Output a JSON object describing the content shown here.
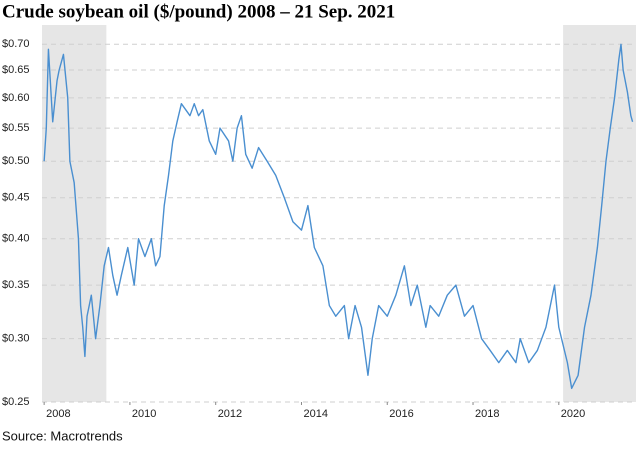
{
  "chart_data": {
    "type": "line",
    "title": "Crude soybean oil ($/pound) 2008 – 21 Sep. 2021",
    "source": "Source: Macrotrends",
    "log_scale": true,
    "grid": true,
    "highlight_ranges": [
      [
        2007.95,
        2009.45
      ],
      [
        2020.1,
        2021.8
      ]
    ],
    "xlim": [
      2007.95,
      2021.8
    ],
    "xticks": [
      2008,
      2010,
      2012,
      2014,
      2016,
      2018,
      2020
    ],
    "ylim": [
      0.25,
      0.74
    ],
    "yticks": [
      {
        "value": 0.25,
        "label": "$0.25"
      },
      {
        "value": 0.3,
        "label": "$0.30"
      },
      {
        "value": 0.35,
        "label": "$0.35"
      },
      {
        "value": 0.4,
        "label": "$0.40"
      },
      {
        "value": 0.45,
        "label": "$0.45"
      },
      {
        "value": 0.5,
        "label": "$0.50"
      },
      {
        "value": 0.55,
        "label": "$0.55"
      },
      {
        "value": 0.6,
        "label": "$0.60"
      },
      {
        "value": 0.65,
        "label": "$0.65"
      },
      {
        "value": 0.7,
        "label": "$0.70"
      }
    ],
    "x": [
      2008.0,
      2008.05,
      2008.1,
      2008.2,
      2008.3,
      2008.35,
      2008.45,
      2008.55,
      2008.6,
      2008.7,
      2008.8,
      2008.85,
      2008.9,
      2008.95,
      2009.0,
      2009.1,
      2009.2,
      2009.3,
      2009.4,
      2009.5,
      2009.6,
      2009.7,
      2009.8,
      2009.95,
      2010.1,
      2010.2,
      2010.35,
      2010.5,
      2010.6,
      2010.7,
      2010.8,
      2010.9,
      2011.0,
      2011.1,
      2011.2,
      2011.4,
      2011.5,
      2011.6,
      2011.7,
      2011.85,
      2012.0,
      2012.1,
      2012.3,
      2012.4,
      2012.5,
      2012.6,
      2012.7,
      2012.85,
      2013.0,
      2013.2,
      2013.4,
      2013.6,
      2013.8,
      2014.0,
      2014.15,
      2014.3,
      2014.5,
      2014.65,
      2014.8,
      2015.0,
      2015.1,
      2015.25,
      2015.4,
      2015.55,
      2015.65,
      2015.8,
      2016.0,
      2016.2,
      2016.4,
      2016.55,
      2016.7,
      2016.9,
      2017.0,
      2017.2,
      2017.4,
      2017.6,
      2017.8,
      2018.0,
      2018.2,
      2018.4,
      2018.6,
      2018.8,
      2019.0,
      2019.1,
      2019.3,
      2019.5,
      2019.7,
      2019.9,
      2020.0,
      2020.2,
      2020.3,
      2020.45,
      2020.6,
      2020.75,
      2020.9,
      2021.0,
      2021.1,
      2021.2,
      2021.3,
      2021.4,
      2021.45,
      2021.5,
      2021.6,
      2021.68,
      2021.72
    ],
    "series": [
      {
        "name": "Crude soybean oil",
        "color": "#4a8fd0",
        "values": [
          0.5,
          0.55,
          0.69,
          0.56,
          0.63,
          0.65,
          0.68,
          0.6,
          0.5,
          0.47,
          0.4,
          0.33,
          0.31,
          0.285,
          0.32,
          0.34,
          0.3,
          0.33,
          0.37,
          0.39,
          0.36,
          0.34,
          0.36,
          0.39,
          0.35,
          0.4,
          0.38,
          0.4,
          0.37,
          0.38,
          0.44,
          0.48,
          0.53,
          0.56,
          0.59,
          0.57,
          0.59,
          0.57,
          0.58,
          0.53,
          0.51,
          0.55,
          0.53,
          0.5,
          0.55,
          0.57,
          0.51,
          0.49,
          0.52,
          0.5,
          0.48,
          0.45,
          0.42,
          0.41,
          0.44,
          0.39,
          0.37,
          0.33,
          0.32,
          0.33,
          0.3,
          0.33,
          0.31,
          0.27,
          0.3,
          0.33,
          0.32,
          0.34,
          0.37,
          0.33,
          0.35,
          0.31,
          0.33,
          0.32,
          0.34,
          0.35,
          0.32,
          0.33,
          0.3,
          0.29,
          0.28,
          0.29,
          0.28,
          0.3,
          0.28,
          0.29,
          0.31,
          0.35,
          0.31,
          0.28,
          0.26,
          0.27,
          0.31,
          0.34,
          0.39,
          0.44,
          0.5,
          0.55,
          0.6,
          0.67,
          0.7,
          0.65,
          0.61,
          0.57,
          0.56
        ]
      }
    ]
  }
}
